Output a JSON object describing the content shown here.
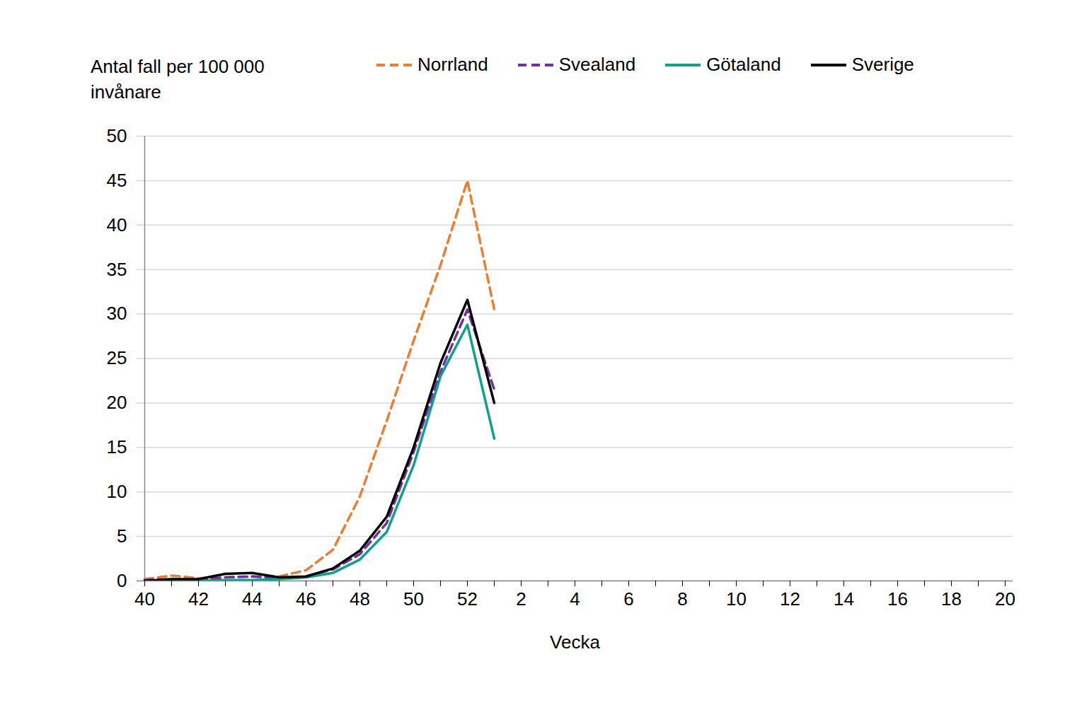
{
  "chart_data": {
    "type": "line",
    "ylabel": "Antal fall per 100 000 invånare",
    "xlabel": "Vecka",
    "categories": [
      "40",
      null,
      "42",
      null,
      "44",
      null,
      "46",
      null,
      "48",
      null,
      "50",
      null,
      "52",
      null,
      "2",
      null,
      "4",
      null,
      "6",
      null,
      "8",
      null,
      "10",
      null,
      "12",
      null,
      "14",
      null,
      "16",
      null,
      "18",
      null,
      "20"
    ],
    "series": [
      {
        "name": "Norrland",
        "color": "#ED7D31",
        "line_style": "dashed",
        "values": [
          0.2,
          0.6,
          0.3,
          0.4,
          0.5,
          0.5,
          1.2,
          3.5,
          9.5,
          18,
          27,
          35.5,
          45,
          30.5,
          null,
          null,
          null,
          null,
          null,
          null,
          null,
          null,
          null,
          null,
          null,
          null,
          null,
          null,
          null,
          null,
          null,
          null,
          null
        ]
      },
      {
        "name": "Svealand",
        "color": "#7030A0",
        "line_style": "dashed",
        "values": [
          0.1,
          0.2,
          0.1,
          0.4,
          0.5,
          0.3,
          0.5,
          1.3,
          3.0,
          6.5,
          14.5,
          23.5,
          30.5,
          21.5,
          null,
          null,
          null,
          null,
          null,
          null,
          null,
          null,
          null,
          null,
          null,
          null,
          null,
          null,
          null,
          null,
          null,
          null,
          null
        ]
      },
      {
        "name": "Götaland",
        "color": "#0FA08A",
        "line_style": "solid",
        "values": [
          0,
          0.1,
          0,
          0.1,
          0.1,
          0.2,
          0.4,
          0.9,
          2.4,
          5.5,
          13,
          23,
          28.8,
          16,
          null,
          null,
          null,
          null,
          null,
          null,
          null,
          null,
          null,
          null,
          null,
          null,
          null,
          null,
          null,
          null,
          null,
          null,
          null
        ]
      },
      {
        "name": "Sverige",
        "color": "#000000",
        "line_style": "solid",
        "values": [
          0,
          0.2,
          0.2,
          0.8,
          0.9,
          0.4,
          0.5,
          1.4,
          3.4,
          7.2,
          15,
          24.5,
          31.6,
          20,
          null,
          null,
          null,
          null,
          null,
          null,
          null,
          null,
          null,
          null,
          null,
          null,
          null,
          null,
          null,
          null,
          null,
          null,
          null
        ]
      }
    ],
    "ylim": [
      0,
      50
    ],
    "yticks": [
      0,
      5,
      10,
      15,
      20,
      25,
      30,
      35,
      40,
      45,
      50
    ],
    "grid": true,
    "legend": "top"
  }
}
